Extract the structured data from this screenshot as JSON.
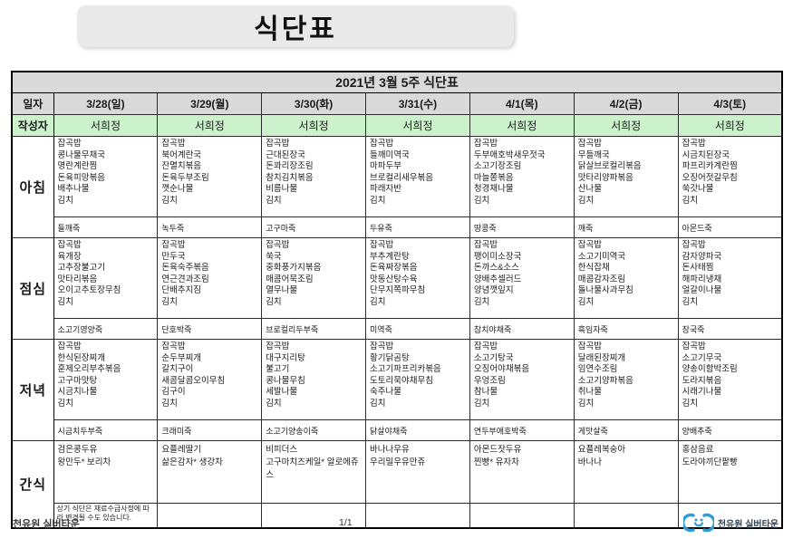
{
  "page_title": "식단표",
  "table": {
    "title": "2021년 3월 5주 식단표",
    "row_labels": {
      "date": "일자",
      "author": "작성자",
      "breakfast": "아침",
      "lunch": "점심",
      "dinner": "저녁",
      "snack": "간식"
    },
    "note": "상기 식단은 재료수급사정에 따라 변경될 수도 있습니다.",
    "days": [
      {
        "date": "3/28(일)",
        "author": "서희정",
        "breakfast": {
          "items": [
            "잡곡밥",
            "콩나물무채국",
            "명란계란찜",
            "돈육피망볶음",
            "배추나물",
            "김치"
          ],
          "porridge": "들깨죽"
        },
        "lunch": {
          "items": [
            "잡곡밥",
            "육개장",
            "고추장불고기",
            "맛타리볶음",
            "오이고추토장무침",
            "김치"
          ],
          "porridge": "소고기영양죽"
        },
        "dinner": {
          "items": [
            "잡곡밥",
            "한식된장찌개",
            "훈제오리부추볶음",
            "고구마맛탕",
            "시금치나물",
            "김치"
          ],
          "porridge": "시금치두부죽"
        },
        "snack": {
          "items": [
            "검은콩두유",
            "왕만두* 보리차"
          ]
        }
      },
      {
        "date": "3/29(월)",
        "author": "서희정",
        "breakfast": {
          "items": [
            "잡곡밥",
            "북어계란국",
            "잔멸치볶음",
            "돈육두부조림",
            "깻순나물",
            "김치"
          ],
          "porridge": "녹두죽"
        },
        "lunch": {
          "items": [
            "잡곡밥",
            "만두국",
            "돈육숙주볶음",
            "연근견과조림",
            "단배추지짐",
            "김치"
          ],
          "porridge": "단호박죽"
        },
        "dinner": {
          "items": [
            "잡곡밥",
            "순두부찌개",
            "갈치구이",
            "새콤달콤오이무침",
            "김구이",
            "김치"
          ],
          "porridge": "크래미죽"
        },
        "snack": {
          "items": [
            "요플레딸기",
            "삶은감자* 생강차"
          ]
        }
      },
      {
        "date": "3/30(화)",
        "author": "서희정",
        "breakfast": {
          "items": [
            "잡곡밥",
            "근대된장국",
            "돈꽈리장조림",
            "참치김치볶음",
            "비름나물",
            "김치"
          ],
          "porridge": "고구마죽"
        },
        "lunch": {
          "items": [
            "잡곡밥",
            "쑥국",
            "중화풍가지볶음",
            "매콤어묵조림",
            "열무나물",
            "김치"
          ],
          "porridge": "브로컬리두부죽"
        },
        "dinner": {
          "items": [
            "잡곡밥",
            "대구지리탕",
            "불고기",
            "콩나물무침",
            "세발나물",
            "김치"
          ],
          "porridge": "소고기양송이죽"
        },
        "snack": {
          "items": [
            "비피더스",
            "고구마치즈케일* 알로에쥬스"
          ]
        }
      },
      {
        "date": "3/31(수)",
        "author": "서희정",
        "breakfast": {
          "items": [
            "잡곡밥",
            "들깨미역국",
            "마파두부",
            "브로컬리새우볶음",
            "파래자반",
            "김치"
          ],
          "porridge": "두유죽"
        },
        "lunch": {
          "items": [
            "잡곡밥",
            "부추계란탕",
            "돈육짜장볶음",
            "맛동산탕수육",
            "단무지쪽파무침",
            "김치"
          ],
          "porridge": "미역죽"
        },
        "dinner": {
          "items": [
            "잡곡밥",
            "황기닭곰탕",
            "소고기파프리카볶음",
            "도토리묵야채무침",
            "숙주나물",
            "김치"
          ],
          "porridge": "닭살야채죽"
        },
        "snack": {
          "items": [
            "바나나우유",
            "우리밀우유만쥬"
          ]
        }
      },
      {
        "date": "4/1(목)",
        "author": "서희정",
        "breakfast": {
          "items": [
            "잡곡밥",
            "두부애호박새우젓국",
            "소고기장조림",
            "마늘쫑볶음",
            "청경채나물",
            "김치"
          ],
          "porridge": "땅콩죽"
        },
        "lunch": {
          "items": [
            "잡곡밥",
            "팽이미소장국",
            "돈까스&소스",
            "양배추셀러드",
            "양념깻잎지",
            "김치"
          ],
          "porridge": "참치야채죽"
        },
        "dinner": {
          "items": [
            "잡곡밥",
            "소고기탕국",
            "오징어야채볶음",
            "우엉조림",
            "참나물",
            "김치"
          ],
          "porridge": "연두부애호박죽"
        },
        "snack": {
          "items": [
            "아몬드잣두유",
            "찐빵* 유자차"
          ]
        }
      },
      {
        "date": "4/2(금)",
        "author": "서희정",
        "breakfast": {
          "items": [
            "잡곡밥",
            "무들깨국",
            "닭살브로컬리볶음",
            "맛타리양파볶음",
            "산나물",
            "김치"
          ],
          "porridge": "깨죽"
        },
        "lunch": {
          "items": [
            "잡곡밥",
            "소고기미역국",
            "한식잡채",
            "매콤감자조림",
            "돌나물사과무침",
            "김치"
          ],
          "porridge": "흑임자죽"
        },
        "dinner": {
          "items": [
            "잡곡밥",
            "달래된장찌개",
            "임연수조림",
            "소고기양파볶음",
            "취나물",
            "김치"
          ],
          "porridge": "게맛살죽"
        },
        "snack": {
          "items": [
            "요플레복숭아",
            "바나나"
          ]
        }
      },
      {
        "date": "4/3(토)",
        "author": "서희정",
        "breakfast": {
          "items": [
            "잡곡밥",
            "시금치된장국",
            "파프리카계란찜",
            "오징어젓갈무침",
            "쑥갓나물",
            "김치"
          ],
          "porridge": "아몬드죽"
        },
        "lunch": {
          "items": [
            "잡곡밥",
            "감자양파국",
            "돈사태찜",
            "해파리냉채",
            "얼갈이나물",
            "김치"
          ],
          "porridge": "장국죽"
        },
        "dinner": {
          "items": [
            "잡곡밥",
            "소고기무국",
            "양송이함박조림",
            "도라지볶음",
            "시래기나물",
            "김치"
          ],
          "porridge": "양배추죽"
        },
        "snack": {
          "items": [
            "홍삼음료",
            "도라야끼단팥빵"
          ]
        }
      }
    ]
  },
  "footer": {
    "facility": "천유원 실버타운",
    "page": "1/1",
    "logo_text": "천유원 실버타운"
  },
  "colors": {
    "header_gray": "#d9d9d9",
    "author_green": "#ccf2cc",
    "title_box_gray": "#e9e9e9",
    "border_black": "#000000",
    "logo_blue": "#2f9cd8"
  }
}
